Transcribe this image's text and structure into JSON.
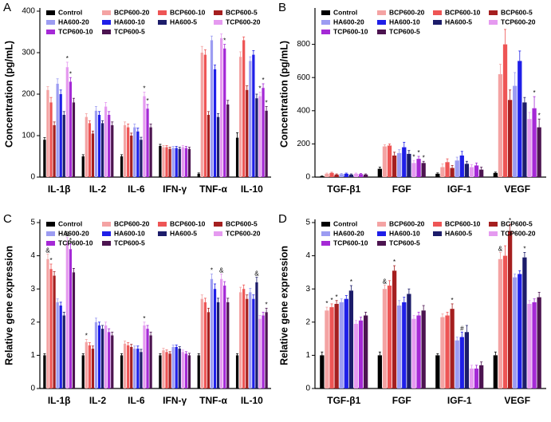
{
  "chart_data": [
    {
      "type": "bar",
      "panel_label": "A",
      "ylabel": "Concentration (pg/mL)",
      "categories": [
        "IL-1β",
        "IL-2",
        "IL-6",
        "IFN-γ",
        "TNF-α",
        "IL-10"
      ],
      "ylim": [
        0,
        400
      ],
      "yticks": [
        0,
        100,
        200,
        300,
        400
      ],
      "series": [
        {
          "name": "Control",
          "color": "#000000",
          "values": [
            90,
            50,
            50,
            75,
            8,
            95
          ],
          "errors": [
            5,
            4,
            4,
            4,
            2,
            12
          ]
        },
        {
          "name": "BCP600-20",
          "color": "#f4a3a3",
          "values": [
            210,
            145,
            125,
            72,
            300,
            290
          ],
          "errors": [
            8,
            8,
            8,
            4,
            15,
            12
          ]
        },
        {
          "name": "BCP600-10",
          "color": "#ee5555",
          "values": [
            180,
            130,
            120,
            72,
            295,
            330
          ],
          "errors": [
            12,
            6,
            8,
            4,
            12,
            8
          ]
        },
        {
          "name": "BCP600-5",
          "color": "#a51f1f",
          "values": [
            125,
            105,
            100,
            68,
            150,
            210
          ],
          "errors": [
            8,
            6,
            6,
            4,
            8,
            10
          ]
        },
        {
          "name": "HA600-20",
          "color": "#9c9cf2",
          "values": [
            225,
            160,
            120,
            70,
            330,
            280
          ],
          "errors": [
            12,
            10,
            8,
            4,
            10,
            10
          ]
        },
        {
          "name": "HA600-10",
          "color": "#1f1fe8",
          "values": [
            200,
            150,
            110,
            70,
            260,
            295
          ],
          "errors": [
            10,
            8,
            8,
            4,
            10,
            10
          ]
        },
        {
          "name": "HA600-5",
          "color": "#1c1c6a",
          "values": [
            150,
            130,
            90,
            68,
            145,
            190
          ],
          "errors": [
            8,
            6,
            6,
            4,
            8,
            10
          ]
        },
        {
          "name": "TCP600-20",
          "color": "#e59af0",
          "values": [
            265,
            170,
            195,
            72,
            335,
            195
          ],
          "errors": [
            12,
            10,
            10,
            4,
            10,
            10
          ]
        },
        {
          "name": "TCP600-10",
          "color": "#a529d6",
          "values": [
            230,
            150,
            165,
            70,
            310,
            215
          ],
          "errors": [
            10,
            8,
            10,
            4,
            10,
            10
          ]
        },
        {
          "name": "TCP600-5",
          "color": "#4c1450",
          "values": [
            180,
            125,
            120,
            68,
            175,
            160
          ],
          "errors": [
            10,
            8,
            8,
            4,
            10,
            10
          ]
        }
      ],
      "annotations": [
        {
          "label": "*",
          "category": "IL-1β",
          "series": "TCP600-20"
        },
        {
          "label": "*",
          "category": "IL-1β",
          "series": "TCP600-10"
        },
        {
          "label": "*",
          "category": "IL-6",
          "series": "TCP600-20"
        },
        {
          "label": "*",
          "category": "IL-6",
          "series": "TCP600-10"
        },
        {
          "label": "*",
          "category": "TNF-α",
          "series": "TCP600-10"
        },
        {
          "label": "*",
          "category": "IL-10",
          "series": "TCP600-20"
        },
        {
          "label": "*",
          "category": "IL-10",
          "series": "TCP600-10"
        },
        {
          "label": "*",
          "category": "IL-10",
          "series": "TCP600-5"
        }
      ]
    },
    {
      "type": "bar",
      "panel_label": "B",
      "ylabel": "Concentration (pg/mL)",
      "categories": [
        "TGF-β1",
        "FGF",
        "IGF-1",
        "VEGF"
      ],
      "ylim": [
        0,
        1000
      ],
      "yticks": [
        0,
        200,
        400,
        600,
        800
      ],
      "series": [
        {
          "name": "Control",
          "color": "#000000",
          "values": [
            5,
            50,
            20,
            25
          ],
          "errors": [
            2,
            10,
            5,
            5
          ]
        },
        {
          "name": "BCP600-20",
          "color": "#f4a3a3",
          "values": [
            20,
            185,
            60,
            620
          ],
          "errors": [
            4,
            10,
            20,
            60
          ]
        },
        {
          "name": "BCP600-10",
          "color": "#ee5555",
          "values": [
            25,
            190,
            90,
            800
          ],
          "errors": [
            4,
            10,
            20,
            90
          ]
        },
        {
          "name": "BCP600-5",
          "color": "#a51f1f",
          "values": [
            15,
            130,
            55,
            465
          ],
          "errors": [
            4,
            20,
            15,
            60
          ]
        },
        {
          "name": "HA600-20",
          "color": "#9c9cf2",
          "values": [
            18,
            145,
            100,
            550
          ],
          "errors": [
            4,
            20,
            20,
            80
          ]
        },
        {
          "name": "HA600-10",
          "color": "#1f1fe8",
          "values": [
            20,
            180,
            130,
            700
          ],
          "errors": [
            4,
            30,
            25,
            60
          ]
        },
        {
          "name": "HA600-5",
          "color": "#1c1c6a",
          "values": [
            15,
            140,
            80,
            450
          ],
          "errors": [
            4,
            20,
            15,
            30
          ]
        },
        {
          "name": "TCP600-20",
          "color": "#e59af0",
          "values": [
            20,
            85,
            60,
            350
          ],
          "errors": [
            4,
            15,
            15,
            40
          ]
        },
        {
          "name": "TCP600-10",
          "color": "#a529d6",
          "values": [
            18,
            110,
            70,
            415
          ],
          "errors": [
            4,
            15,
            15,
            70
          ]
        },
        {
          "name": "TCP600-5",
          "color": "#4c1450",
          "values": [
            15,
            85,
            45,
            300
          ],
          "errors": [
            4,
            10,
            15,
            50
          ]
        }
      ],
      "annotations": [
        {
          "label": "*",
          "category": "FGF",
          "series": "TCP600-20"
        },
        {
          "label": "*",
          "category": "FGF",
          "series": "TCP600-10"
        },
        {
          "label": "*",
          "category": "FGF",
          "series": "TCP600-5"
        },
        {
          "label": "*",
          "category": "VEGF",
          "series": "TCP600-10"
        },
        {
          "label": "*",
          "category": "VEGF",
          "series": "TCP600-5"
        }
      ]
    },
    {
      "type": "bar",
      "panel_label": "C",
      "ylabel": "Relative gene expression",
      "categories": [
        "IL-1β",
        "IL-2",
        "IL-6",
        "IFN-γ",
        "TNF-α",
        "IL-10"
      ],
      "ylim": [
        0,
        5
      ],
      "yticks": [
        0,
        1,
        2,
        3,
        4,
        5
      ],
      "series": [
        {
          "name": "Control",
          "color": "#000000",
          "values": [
            1,
            1,
            1,
            1,
            1,
            1
          ],
          "errors": [
            0.05,
            0.05,
            0.05,
            0.05,
            0.05,
            0.05
          ]
        },
        {
          "name": "BCP600-20",
          "color": "#f4a3a3",
          "values": [
            3.9,
            1.4,
            1.35,
            1.15,
            2.7,
            2.9
          ],
          "errors": [
            0.15,
            0.08,
            0.08,
            0.06,
            0.12,
            0.15
          ]
        },
        {
          "name": "BCP600-10",
          "color": "#ee5555",
          "values": [
            3.6,
            1.3,
            1.3,
            1.1,
            2.6,
            3.0
          ],
          "errors": [
            0.15,
            0.08,
            0.08,
            0.06,
            0.12,
            0.12
          ]
        },
        {
          "name": "BCP600-5",
          "color": "#a51f1f",
          "values": [
            3.4,
            1.2,
            1.25,
            1.05,
            2.3,
            2.7
          ],
          "errors": [
            0.12,
            0.08,
            0.08,
            0.06,
            0.12,
            0.12
          ]
        },
        {
          "name": "HA600-20",
          "color": "#9c9cf2",
          "values": [
            2.6,
            2.0,
            1.2,
            1.25,
            3.3,
            2.9
          ],
          "errors": [
            0.1,
            0.12,
            0.08,
            0.06,
            0.15,
            0.12
          ]
        },
        {
          "name": "HA600-10",
          "color": "#1f1fe8",
          "values": [
            2.5,
            1.9,
            1.2,
            1.25,
            3.0,
            2.7
          ],
          "errors": [
            0.1,
            0.1,
            0.08,
            0.06,
            0.15,
            0.12
          ]
        },
        {
          "name": "HA600-5",
          "color": "#1c1c6a",
          "values": [
            2.2,
            1.8,
            1.1,
            1.2,
            2.6,
            3.2
          ],
          "errors": [
            0.1,
            0.1,
            0.08,
            0.06,
            0.12,
            0.15
          ]
        },
        {
          "name": "TCP600-20",
          "color": "#e59af0",
          "values": [
            4.4,
            1.9,
            1.9,
            1.1,
            3.3,
            2.1
          ],
          "errors": [
            0.15,
            0.1,
            0.1,
            0.06,
            0.15,
            0.1
          ]
        },
        {
          "name": "TCP600-10",
          "color": "#a529d6",
          "values": [
            4.2,
            1.7,
            1.8,
            1.05,
            3.1,
            2.2
          ],
          "errors": [
            0.15,
            0.1,
            0.1,
            0.06,
            0.12,
            0.1
          ]
        },
        {
          "name": "TCP600-5",
          "color": "#4c1450",
          "values": [
            3.5,
            1.6,
            1.6,
            1.0,
            2.6,
            2.3
          ],
          "errors": [
            0.12,
            0.1,
            0.1,
            0.06,
            0.12,
            0.12
          ]
        }
      ],
      "annotations": [
        {
          "label": "&",
          "category": "IL-1β",
          "series": "BCP600-20"
        },
        {
          "label": "*",
          "category": "IL-1β",
          "series": "BCP600-10"
        },
        {
          "label": "&",
          "category": "IL-1β",
          "series": "TCP600-20"
        },
        {
          "label": "*",
          "category": "IL-1β",
          "series": "TCP600-10"
        },
        {
          "label": "*",
          "category": "IL-2",
          "series": "BCP600-20"
        },
        {
          "label": "*",
          "category": "IL-6",
          "series": "TCP600-20"
        },
        {
          "label": "*",
          "category": "TNF-α",
          "series": "HA600-20"
        },
        {
          "label": "&",
          "category": "TNF-α",
          "series": "TCP600-20"
        },
        {
          "label": "&",
          "category": "IL-10",
          "series": "HA600-5"
        },
        {
          "label": "*",
          "category": "IL-10",
          "series": "TCP600-5"
        }
      ]
    },
    {
      "type": "bar",
      "panel_label": "D",
      "ylabel": "Relative gene expression",
      "categories": [
        "TGF-β1",
        "FGF",
        "IGF-1",
        "VEGF"
      ],
      "ylim": [
        0,
        5
      ],
      "yticks": [
        0,
        1,
        2,
        3,
        4,
        5
      ],
      "series": [
        {
          "name": "Control",
          "color": "#000000",
          "values": [
            1,
            1,
            1,
            1
          ],
          "errors": [
            0.1,
            0.1,
            0.05,
            0.1
          ]
        },
        {
          "name": "BCP600-20",
          "color": "#f4a3a3",
          "values": [
            2.35,
            3.0,
            2.15,
            3.9
          ],
          "errors": [
            0.1,
            0.12,
            0.1,
            0.2
          ]
        },
        {
          "name": "BCP600-10",
          "color": "#ee5555",
          "values": [
            2.45,
            3.1,
            2.2,
            4.0
          ],
          "errors": [
            0.1,
            0.15,
            0.1,
            0.3
          ]
        },
        {
          "name": "BCP600-5",
          "color": "#a51f1f",
          "values": [
            2.55,
            3.55,
            2.4,
            4.75
          ],
          "errors": [
            0.1,
            0.15,
            0.15,
            0.2
          ]
        },
        {
          "name": "HA600-20",
          "color": "#9c9cf2",
          "values": [
            2.6,
            2.5,
            1.45,
            3.35
          ],
          "errors": [
            0.1,
            0.15,
            0.1,
            0.1
          ]
        },
        {
          "name": "HA600-10",
          "color": "#1f1fe8",
          "values": [
            2.7,
            2.6,
            1.55,
            3.45
          ],
          "errors": [
            0.1,
            0.15,
            0.15,
            0.1
          ]
        },
        {
          "name": "HA600-5",
          "color": "#1c1c6a",
          "values": [
            2.95,
            2.85,
            1.7,
            3.95
          ],
          "errors": [
            0.15,
            0.15,
            0.2,
            0.15
          ]
        },
        {
          "name": "TCP600-20",
          "color": "#e59af0",
          "values": [
            1.95,
            2.1,
            0.6,
            2.55
          ],
          "errors": [
            0.1,
            0.1,
            0.1,
            0.1
          ]
        },
        {
          "name": "TCP600-10",
          "color": "#a529d6",
          "values": [
            2.05,
            2.2,
            0.6,
            2.6
          ],
          "errors": [
            0.1,
            0.1,
            0.1,
            0.1
          ]
        },
        {
          "name": "TCP600-5",
          "color": "#4c1450",
          "values": [
            2.2,
            2.35,
            0.7,
            2.75
          ],
          "errors": [
            0.1,
            0.15,
            0.1,
            0.15
          ]
        }
      ],
      "annotations": [
        {
          "label": "*",
          "category": "TGF-β1",
          "series": "BCP600-20"
        },
        {
          "label": "*",
          "category": "TGF-β1",
          "series": "BCP600-10"
        },
        {
          "label": "*",
          "category": "TGF-β1",
          "series": "BCP600-5"
        },
        {
          "label": "*",
          "category": "TGF-β1",
          "series": "HA600-5"
        },
        {
          "label": "&",
          "category": "FGF",
          "series": "BCP600-20"
        },
        {
          "label": "*",
          "category": "FGF",
          "series": "BCP600-5"
        },
        {
          "label": "*",
          "category": "IGF-1",
          "series": "BCP600-5"
        },
        {
          "label": "#",
          "category": "IGF-1",
          "series": "HA600-10"
        },
        {
          "label": "&",
          "category": "VEGF",
          "series": "BCP600-20"
        },
        {
          "label": "*",
          "category": "VEGF",
          "series": "BCP600-5"
        },
        {
          "label": "*",
          "category": "VEGF",
          "series": "HA600-5"
        }
      ]
    }
  ]
}
